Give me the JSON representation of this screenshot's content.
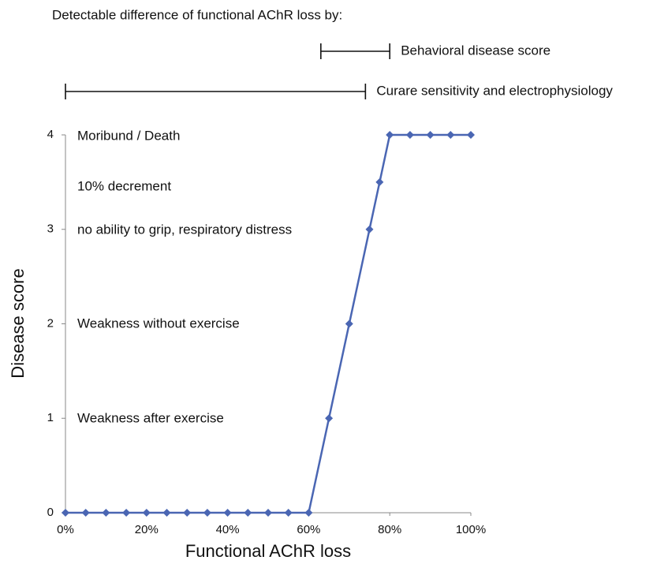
{
  "chart_data": {
    "type": "line",
    "header": "Detectable difference of  functional AChR loss by:",
    "ranges": [
      {
        "label": "Behavioral disease score",
        "range": [
          63,
          80
        ]
      },
      {
        "label": "Curare sensitivity and electrophysiology",
        "range": [
          0,
          74
        ]
      }
    ],
    "x_label": "Functional AChR loss",
    "y_label": "Disease score",
    "x": [
      0,
      5,
      10,
      15,
      20,
      25,
      30,
      35,
      40,
      45,
      50,
      55,
      60,
      65,
      70,
      75,
      77.5,
      80,
      85,
      90,
      95,
      100
    ],
    "series": [
      {
        "color": "#4a66b3",
        "values": [
          0,
          0,
          0,
          0,
          0,
          0,
          0,
          0,
          0,
          0,
          0,
          0,
          0,
          1,
          2,
          3,
          3.5,
          4,
          4,
          4,
          4,
          4
        ]
      }
    ],
    "annotations": [
      "Moribund / Death",
      "10% decrement",
      "no ability to grip, respiratory distress",
      "Weakness without exercise",
      "Weakness after exercise"
    ],
    "xlim": [
      0,
      100
    ],
    "xticks": [
      {
        "value": 0,
        "label": "0%"
      },
      {
        "value": 20,
        "label": "20%"
      },
      {
        "value": 40,
        "label": "40%"
      },
      {
        "value": 60,
        "label": "60%"
      },
      {
        "value": 80,
        "label": "80%"
      },
      {
        "value": 100,
        "label": "100%"
      }
    ],
    "ylim": [
      0,
      4
    ],
    "yticks": [
      0,
      1,
      2,
      3,
      4
    ],
    "grid": false
  }
}
